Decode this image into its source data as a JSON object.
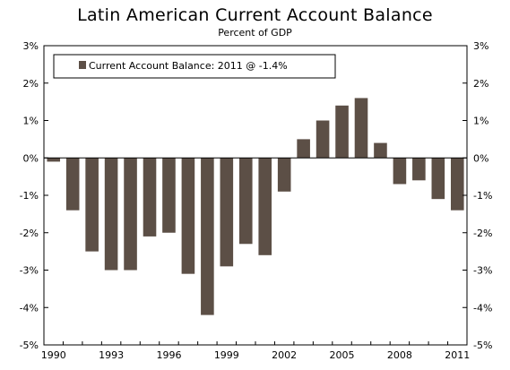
{
  "chart_data": {
    "type": "bar",
    "title": "Latin American Current Account Balance",
    "subtitle": "Percent of GDP",
    "legend": {
      "label": "Current Account Balance: 2011 @ -1.4%",
      "placement": "top-left"
    },
    "bar_color": "#5c4f46",
    "categories": [
      "1990",
      "1991",
      "1992",
      "1993",
      "1994",
      "1995",
      "1996",
      "1997",
      "1998",
      "1999",
      "2000",
      "2001",
      "2002",
      "2003",
      "2004",
      "2005",
      "2006",
      "2007",
      "2008",
      "2009",
      "2010",
      "2011"
    ],
    "values": [
      -0.1,
      -1.4,
      -2.5,
      -3.0,
      -3.0,
      -2.1,
      -2.0,
      -3.1,
      -4.2,
      -2.9,
      -2.3,
      -2.6,
      -0.9,
      0.5,
      1.0,
      1.4,
      1.6,
      0.4,
      -0.7,
      -0.6,
      -1.1,
      -1.4
    ],
    "x_tick_labels": [
      "1990",
      "1993",
      "1996",
      "1999",
      "2002",
      "2005",
      "2008",
      "2011"
    ],
    "y_tick_labels": [
      "3%",
      "2%",
      "1%",
      "0%",
      "-1%",
      "-2%",
      "-3%",
      "-4%",
      "-5%"
    ],
    "ylim": [
      -5,
      3
    ],
    "grid": false,
    "xlabel": "",
    "ylabel": ""
  }
}
